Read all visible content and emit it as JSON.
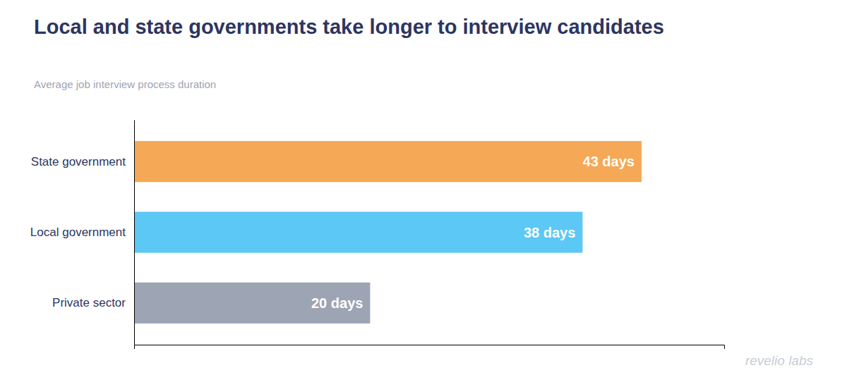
{
  "chart_data": {
    "type": "bar",
    "orientation": "horizontal",
    "title": "Local and state governments take longer to interview candidates",
    "subtitle": "Average job interview process duration",
    "categories": [
      "State government",
      "Local government",
      "Private sector"
    ],
    "values": [
      43,
      38,
      20
    ],
    "value_labels": [
      "43 days",
      "38 days",
      "20 days"
    ],
    "colors": [
      "#f5a855",
      "#5bc8f5",
      "#9da5b4"
    ],
    "xlim": [
      0,
      50
    ],
    "data_labels": true,
    "tick_labels": "y",
    "grid": false,
    "annotations": [
      "revelio labs"
    ]
  }
}
